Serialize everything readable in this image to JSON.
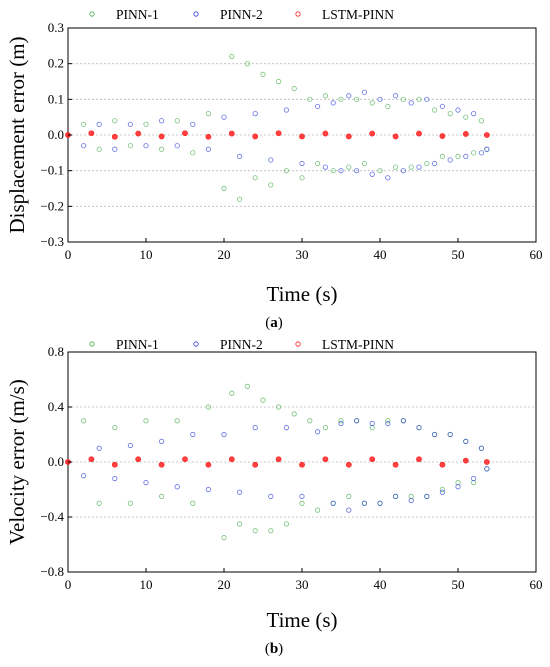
{
  "legend": [
    {
      "name": "PINN-1",
      "color": "#4caf50"
    },
    {
      "name": "PINN-2",
      "color": "#3344dd"
    },
    {
      "name": "LSTM-PINN",
      "color": "#ff2020"
    }
  ],
  "chart_data": [
    {
      "type": "scatter",
      "panel_label": "a",
      "xlabel": "Time (s)",
      "ylabel": "Displacement error (m)",
      "xlim": [
        0,
        60
      ],
      "ylim": [
        -0.3,
        0.3
      ],
      "xticks": [
        "0",
        "10",
        "20",
        "30",
        "40",
        "50",
        "60"
      ],
      "yticks": [
        "0.3",
        "0.2",
        "0.1",
        "0.0",
        "−0.1",
        "−0.2",
        "−0.3"
      ],
      "ytick_values": [
        0.3,
        0.2,
        0.1,
        0.0,
        -0.1,
        -0.2,
        -0.3
      ],
      "grid": true,
      "legend_position": "top",
      "series": [
        {
          "name": "PINN-1",
          "color": "#4caf50",
          "x": [
            0,
            2,
            4,
            6,
            8,
            10,
            12,
            14,
            16,
            18,
            20,
            21,
            22,
            23,
            24,
            25,
            26,
            27,
            28,
            29,
            30,
            31,
            32,
            33,
            34,
            35,
            36,
            37,
            38,
            39,
            40,
            41,
            42,
            43,
            44,
            45,
            46,
            47,
            48,
            49,
            50,
            51,
            52,
            53,
            53.7
          ],
          "y": [
            0.0,
            0.03,
            -0.04,
            0.04,
            -0.03,
            0.03,
            -0.04,
            0.04,
            -0.05,
            0.06,
            -0.15,
            0.22,
            -0.18,
            0.2,
            -0.12,
            0.17,
            -0.14,
            0.15,
            -0.1,
            0.13,
            -0.12,
            0.1,
            -0.08,
            0.11,
            -0.1,
            0.1,
            -0.09,
            0.1,
            -0.08,
            0.09,
            -0.1,
            0.08,
            -0.09,
            0.1,
            -0.09,
            0.1,
            -0.08,
            0.07,
            -0.06,
            0.06,
            -0.06,
            0.05,
            -0.05,
            0.04,
            -0.04
          ]
        },
        {
          "name": "PINN-2",
          "color": "#3344dd",
          "x": [
            0,
            2,
            4,
            6,
            8,
            10,
            12,
            14,
            16,
            18,
            20,
            22,
            24,
            26,
            28,
            30,
            32,
            33,
            34,
            35,
            36,
            37,
            38,
            39,
            40,
            41,
            42,
            43,
            44,
            45,
            46,
            47,
            48,
            49,
            50,
            51,
            52,
            53,
            53.7
          ],
          "y": [
            0.0,
            -0.03,
            0.03,
            -0.04,
            0.03,
            -0.03,
            0.04,
            -0.03,
            0.03,
            -0.04,
            0.05,
            -0.06,
            0.06,
            -0.07,
            0.07,
            -0.08,
            0.08,
            -0.09,
            0.09,
            -0.1,
            0.11,
            -0.1,
            0.12,
            -0.11,
            0.1,
            -0.12,
            0.11,
            -0.1,
            0.09,
            -0.09,
            0.1,
            -0.08,
            0.08,
            -0.07,
            0.07,
            -0.06,
            0.06,
            -0.05,
            -0.04
          ]
        },
        {
          "name": "LSTM-PINN",
          "color": "#ff2020",
          "x": [
            0,
            3,
            6,
            9,
            12,
            15,
            18,
            21,
            24,
            27,
            30,
            33,
            36,
            39,
            42,
            45,
            48,
            51,
            53.7
          ],
          "y": [
            0.0,
            0.005,
            -0.005,
            0.004,
            -0.004,
            0.005,
            -0.005,
            0.004,
            -0.004,
            0.005,
            -0.004,
            0.004,
            -0.004,
            0.004,
            -0.004,
            0.004,
            -0.003,
            0.003,
            0.0
          ]
        }
      ]
    },
    {
      "type": "scatter",
      "panel_label": "b",
      "xlabel": "Time (s)",
      "ylabel": "Velocity error (m/s)",
      "xlim": [
        0,
        60
      ],
      "ylim": [
        -0.8,
        0.8
      ],
      "xticks": [
        "0",
        "10",
        "20",
        "30",
        "40",
        "50",
        "60"
      ],
      "yticks": [
        "0.8",
        "0.4",
        "0.0",
        "−0.4",
        "−0.8"
      ],
      "ytick_values": [
        0.8,
        0.4,
        0.0,
        -0.4,
        -0.8
      ],
      "grid": true,
      "legend_position": "top",
      "series": [
        {
          "name": "PINN-1",
          "color": "#4caf50",
          "x": [
            0,
            2,
            4,
            6,
            8,
            10,
            12,
            14,
            16,
            18,
            20,
            21,
            22,
            23,
            24,
            25,
            26,
            27,
            28,
            29,
            30,
            31,
            32,
            33,
            34,
            35,
            36,
            37,
            38,
            39,
            40,
            41,
            42,
            43,
            44,
            45,
            46,
            47,
            48,
            49,
            50,
            51,
            52,
            53,
            53.7
          ],
          "y": [
            0.0,
            0.3,
            -0.3,
            0.25,
            -0.3,
            0.3,
            -0.25,
            0.3,
            -0.3,
            0.4,
            -0.55,
            0.5,
            -0.45,
            0.55,
            -0.5,
            0.45,
            -0.5,
            0.4,
            -0.45,
            0.35,
            -0.3,
            0.3,
            -0.35,
            0.25,
            -0.3,
            0.3,
            -0.25,
            0.3,
            -0.3,
            0.25,
            -0.3,
            0.3,
            -0.25,
            0.3,
            -0.25,
            0.25,
            -0.25,
            0.2,
            -0.2,
            0.2,
            -0.15,
            0.15,
            -0.15,
            0.1,
            -0.05
          ]
        },
        {
          "name": "PINN-2",
          "color": "#3344dd",
          "x": [
            0,
            2,
            4,
            6,
            8,
            10,
            12,
            14,
            16,
            18,
            20,
            22,
            24,
            26,
            28,
            30,
            32,
            34,
            35,
            36,
            37,
            38,
            39,
            40,
            41,
            42,
            43,
            44,
            45,
            46,
            47,
            48,
            49,
            50,
            51,
            52,
            53,
            53.7
          ],
          "y": [
            0.0,
            -0.1,
            0.1,
            -0.12,
            0.12,
            -0.15,
            0.15,
            -0.18,
            0.2,
            -0.2,
            0.2,
            -0.22,
            0.25,
            -0.25,
            0.25,
            -0.25,
            0.22,
            -0.3,
            0.28,
            -0.35,
            0.3,
            -0.3,
            0.28,
            -0.3,
            0.28,
            -0.25,
            0.3,
            -0.28,
            0.25,
            -0.25,
            0.2,
            -0.22,
            0.2,
            -0.18,
            0.15,
            -0.12,
            0.1,
            -0.05
          ]
        },
        {
          "name": "LSTM-PINN",
          "color": "#ff2020",
          "x": [
            0,
            3,
            6,
            9,
            12,
            15,
            18,
            21,
            24,
            27,
            30,
            33,
            36,
            39,
            42,
            45,
            48,
            51,
            53.7
          ],
          "y": [
            0.0,
            0.02,
            -0.02,
            0.02,
            -0.02,
            0.02,
            -0.02,
            0.02,
            -0.02,
            0.02,
            -0.02,
            0.02,
            -0.02,
            0.02,
            -0.02,
            0.02,
            -0.02,
            0.01,
            0.0
          ]
        }
      ]
    }
  ]
}
